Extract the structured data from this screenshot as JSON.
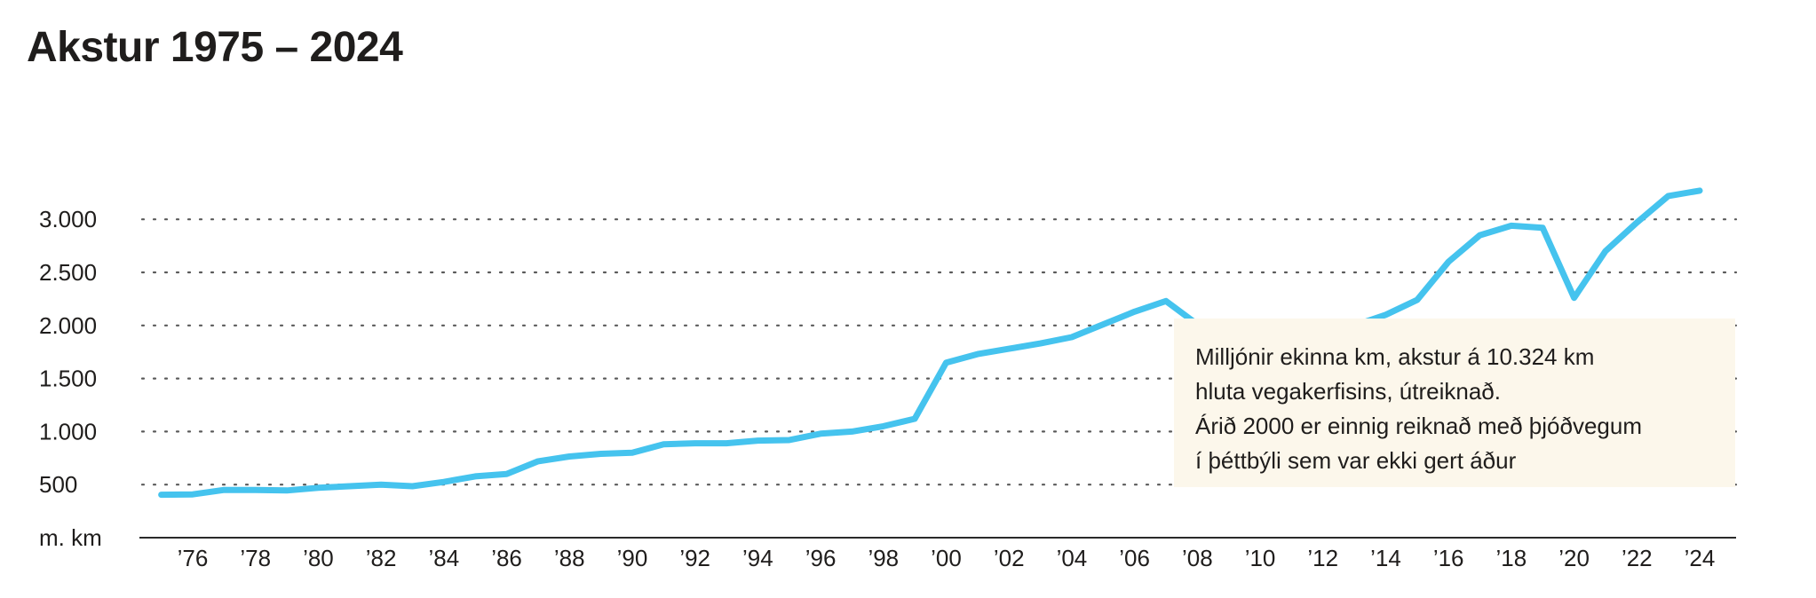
{
  "chart_data": {
    "type": "line",
    "title": "Akstur 1975 – 2024",
    "ylabel": "m. km",
    "ylim": [
      0,
      3000
    ],
    "yticks": [
      {
        "value": 3000,
        "label": "3.000"
      },
      {
        "value": 2500,
        "label": "2.500"
      },
      {
        "value": 2000,
        "label": "2.000"
      },
      {
        "value": 1500,
        "label": "1.500"
      },
      {
        "value": 1000,
        "label": "1.000"
      },
      {
        "value": 500,
        "label": "500"
      }
    ],
    "xticks": [
      {
        "value": 1976,
        "label": "’76"
      },
      {
        "value": 1978,
        "label": "’78"
      },
      {
        "value": 1980,
        "label": "’80"
      },
      {
        "value": 1982,
        "label": "’82"
      },
      {
        "value": 1984,
        "label": "’84"
      },
      {
        "value": 1986,
        "label": "’86"
      },
      {
        "value": 1988,
        "label": "’88"
      },
      {
        "value": 1990,
        "label": "’90"
      },
      {
        "value": 1992,
        "label": "’92"
      },
      {
        "value": 1994,
        "label": "’94"
      },
      {
        "value": 1996,
        "label": "’96"
      },
      {
        "value": 1998,
        "label": "’98"
      },
      {
        "value": 2000,
        "label": "’00"
      },
      {
        "value": 2002,
        "label": "’02"
      },
      {
        "value": 2004,
        "label": "’04"
      },
      {
        "value": 2006,
        "label": "’06"
      },
      {
        "value": 2008,
        "label": "’08"
      },
      {
        "value": 2010,
        "label": "’10"
      },
      {
        "value": 2012,
        "label": "’12"
      },
      {
        "value": 2014,
        "label": "’14"
      },
      {
        "value": 2016,
        "label": "’16"
      },
      {
        "value": 2018,
        "label": "’18"
      },
      {
        "value": 2020,
        "label": "’20"
      },
      {
        "value": 2022,
        "label": "’22"
      },
      {
        "value": 2024,
        "label": "’24"
      }
    ],
    "grid": true,
    "series": [
      {
        "color": "#45c3ee",
        "x": [
          1975,
          1976,
          1977,
          1978,
          1979,
          1980,
          1981,
          1982,
          1983,
          1984,
          1985,
          1986,
          1987,
          1988,
          1989,
          1990,
          1991,
          1992,
          1993,
          1994,
          1995,
          1996,
          1997,
          1998,
          1999,
          2000,
          2001,
          2002,
          2003,
          2004,
          2005,
          2006,
          2007,
          2008,
          2009,
          2010,
          2011,
          2012,
          2013,
          2014,
          2015,
          2016,
          2017,
          2018,
          2019,
          2020,
          2021,
          2022,
          2023,
          2024
        ],
        "values": [
          405,
          408,
          450,
          450,
          445,
          470,
          485,
          500,
          485,
          525,
          578,
          600,
          720,
          765,
          790,
          800,
          880,
          890,
          890,
          915,
          920,
          980,
          1000,
          1050,
          1120,
          1650,
          1730,
          1780,
          1830,
          1890,
          2010,
          2130,
          2230,
          2010,
          2010,
          1990,
          1920,
          1945,
          2000,
          2100,
          2240,
          2600,
          2850,
          2940,
          2920,
          2260,
          2700,
          2970,
          3220,
          3270
        ]
      }
    ],
    "annotation": {
      "lines": [
        "Milljónir ekinna km, akstur á 10.324 km",
        "hluta vegakerfisins, útreiknað.",
        "Árið 2000 er einnig reiknað með þjóðvegum",
        "í þéttbýli sem var ekki gert áður"
      ],
      "background": "#fcf7eb"
    }
  }
}
